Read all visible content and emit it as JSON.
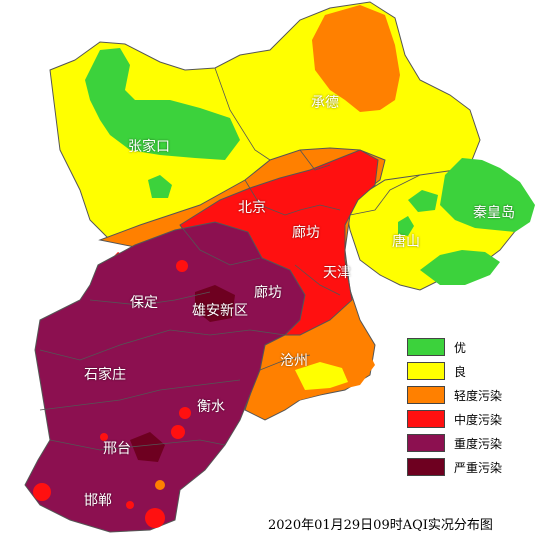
{
  "colors": {
    "excellent": "#3cd23c",
    "good": "#ffff00",
    "light_pollution": "#ff8000",
    "moderate_pollution": "#ff1010",
    "heavy_pollution": "#8c1050",
    "severe_pollution": "#6e0020",
    "boundary": "#555555"
  },
  "cities": [
    {
      "id": "zhangjiakou",
      "label": "张家口"
    },
    {
      "id": "chengde",
      "label": "承德"
    },
    {
      "id": "beijing",
      "label": "北京"
    },
    {
      "id": "langfang_north",
      "label": "廊坊"
    },
    {
      "id": "qinhuangdao",
      "label": "秦皇岛"
    },
    {
      "id": "tangshan",
      "label": "唐山"
    },
    {
      "id": "tianjin",
      "label": "天津"
    },
    {
      "id": "baoding",
      "label": "保定"
    },
    {
      "id": "langfang_south",
      "label": "廊坊"
    },
    {
      "id": "xiongan",
      "label": "雄安新区"
    },
    {
      "id": "cangzhou",
      "label": "沧州"
    },
    {
      "id": "shijiazhuang",
      "label": "石家庄"
    },
    {
      "id": "hengshui",
      "label": "衡水"
    },
    {
      "id": "xingtai",
      "label": "邢台"
    },
    {
      "id": "handan",
      "label": "邯郸"
    }
  ],
  "legend": [
    {
      "label": "优",
      "color": "#3cd23c"
    },
    {
      "label": "良",
      "color": "#ffff00"
    },
    {
      "label": "轻度污染",
      "color": "#ff8000"
    },
    {
      "label": "中度污染",
      "color": "#ff1010"
    },
    {
      "label": "重度污染",
      "color": "#8c1050"
    },
    {
      "label": "严重污染",
      "color": "#6e0020"
    }
  ],
  "caption": "2020年01月29日09时AQI实况分布图"
}
